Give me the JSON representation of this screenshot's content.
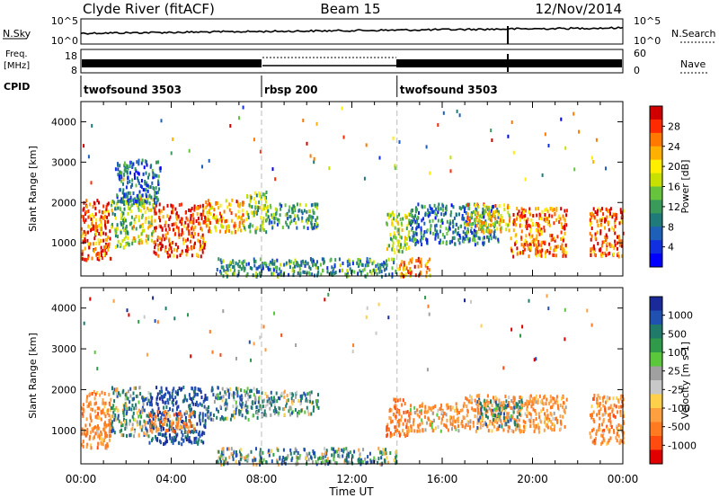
{
  "header": {
    "station": "Clyde River (fitACF)",
    "beam": "Beam 15",
    "date": "12/Nov/2014"
  },
  "panels": {
    "noise": {
      "left_label": "N.Sky",
      "left_ticks": [
        "10^5",
        "10^0"
      ],
      "right_ticks": [
        "10^5",
        "10^0"
      ],
      "right_label": "N.Search"
    },
    "freq": {
      "left_label_1": "Freq.",
      "left_label_2": "[MHz]",
      "left_ticks": [
        "18",
        "8"
      ],
      "right_ticks": [
        "60",
        "0"
      ],
      "right_label": "Nave"
    },
    "cpid": {
      "label": "CPID",
      "segments": [
        {
          "name": "twofsound 3503",
          "start_hour": 0,
          "end_hour": 8
        },
        {
          "name": "rbsp 200",
          "start_hour": 8,
          "end_hour": 14
        },
        {
          "name": "twofsound 3503",
          "start_hour": 14,
          "end_hour": 24
        }
      ]
    }
  },
  "colorbars": {
    "power": {
      "label": "Power [dB]",
      "ticks": [
        "28",
        "24",
        "20",
        "16",
        "12",
        "8",
        "4"
      ],
      "colors": [
        "#d00000",
        "#ff2a00",
        "#ff7800",
        "#ffb000",
        "#ffee00",
        "#c8e000",
        "#66c33c",
        "#3a9a5a",
        "#1f7a7a",
        "#1e5fb8",
        "#1030e0",
        "#0000ff"
      ]
    },
    "velocity": {
      "label": "Velocity [m s-1]",
      "ticks": [
        "1000",
        "500",
        "100",
        "25",
        "-25",
        "-100",
        "-500",
        "-1000"
      ],
      "colors": [
        "#1a2a9a",
        "#2050b0",
        "#1f7a6a",
        "#2e9a4a",
        "#5ac83a",
        "#a0a0a0",
        "#c8c8c8",
        "#ffd04a",
        "#ffa040",
        "#ff7a20",
        "#ff4a10",
        "#e00000"
      ]
    }
  },
  "chart_data": [
    {
      "type": "heatmap",
      "title": "Power",
      "ylabel": "Slant Range [km]",
      "xlabel": "Time UT",
      "x_range_hours": [
        0,
        24
      ],
      "ylim": [
        180,
        4500
      ],
      "yticks": [
        1000,
        2000,
        3000,
        4000
      ],
      "xtick_labels": [
        "00:00",
        "04:00",
        "08:00",
        "12:00",
        "16:00",
        "20:00",
        "00:00"
      ],
      "colorscale_range_db": [
        0,
        30
      ],
      "regions": [
        {
          "t0": 0.0,
          "t1": 1.3,
          "r0": 600,
          "r1": 2100,
          "power_db": 26
        },
        {
          "t0": 1.3,
          "t1": 2.3,
          "r0": 900,
          "r1": 2100,
          "power_db": 14
        },
        {
          "t0": 2.3,
          "t1": 3.2,
          "r0": 1000,
          "r1": 2200,
          "power_db": 18
        },
        {
          "t0": 3.2,
          "t1": 5.5,
          "r0": 700,
          "r1": 2000,
          "power_db": 27
        },
        {
          "t0": 5.5,
          "t1": 7.2,
          "r0": 1300,
          "r1": 2100,
          "power_db": 22
        },
        {
          "t0": 7.2,
          "t1": 8.2,
          "r0": 1300,
          "r1": 2300,
          "power_db": 14
        },
        {
          "t0": 8.2,
          "t1": 10.5,
          "r0": 1400,
          "r1": 2000,
          "power_db": 10
        },
        {
          "t0": 1.5,
          "t1": 3.5,
          "r0": 2000,
          "r1": 3100,
          "power_db": 7
        },
        {
          "t0": 13.5,
          "t1": 14.5,
          "r0": 800,
          "r1": 1800,
          "power_db": 16
        },
        {
          "t0": 14.0,
          "t1": 15.5,
          "r0": 200,
          "r1": 650,
          "power_db": 24
        },
        {
          "t0": 14.5,
          "t1": 18.5,
          "r0": 1000,
          "r1": 2000,
          "power_db": 8
        },
        {
          "t0": 17.0,
          "t1": 19.0,
          "r0": 1300,
          "r1": 2000,
          "power_db": 20
        },
        {
          "t0": 19.0,
          "t1": 21.5,
          "r0": 700,
          "r1": 1900,
          "power_db": 25
        },
        {
          "t0": 22.5,
          "t1": 24.0,
          "r0": 700,
          "r1": 1900,
          "power_db": 26
        },
        {
          "t0": 6.0,
          "t1": 14.0,
          "r0": 200,
          "r1": 650,
          "power_db": 10
        }
      ]
    },
    {
      "type": "heatmap",
      "title": "Velocity",
      "ylabel": "Slant Range [km]",
      "xlabel": "Time UT",
      "x_range_hours": [
        0,
        24
      ],
      "ylim": [
        180,
        4500
      ],
      "yticks": [
        1000,
        2000,
        3000,
        4000
      ],
      "xtick_labels": [
        "00:00",
        "04:00",
        "08:00",
        "12:00",
        "16:00",
        "20:00",
        "00:00"
      ],
      "colorscale_range_ms": [
        -1000,
        1000
      ],
      "regions": [
        {
          "t0": 0.0,
          "t1": 1.3,
          "r0": 600,
          "r1": 2000,
          "velocity": -300
        },
        {
          "t0": 1.3,
          "t1": 3.0,
          "r0": 900,
          "r1": 2100,
          "velocity": 80
        },
        {
          "t0": 3.0,
          "t1": 5.5,
          "r0": 700,
          "r1": 2100,
          "velocity": 400
        },
        {
          "t0": 3.0,
          "t1": 5.0,
          "r0": 1000,
          "r1": 1500,
          "velocity": -300
        },
        {
          "t0": 5.5,
          "t1": 8.2,
          "r0": 1300,
          "r1": 2100,
          "velocity": 150
        },
        {
          "t0": 8.2,
          "t1": 10.5,
          "r0": 1400,
          "r1": 2000,
          "velocity": 120
        },
        {
          "t0": 13.5,
          "t1": 14.5,
          "r0": 900,
          "r1": 1800,
          "velocity": -400
        },
        {
          "t0": 14.5,
          "t1": 17.0,
          "r0": 1000,
          "r1": 1700,
          "velocity": -200
        },
        {
          "t0": 17.0,
          "t1": 21.5,
          "r0": 1000,
          "r1": 1900,
          "velocity": -250
        },
        {
          "t0": 17.5,
          "t1": 19.5,
          "r0": 1100,
          "r1": 1800,
          "velocity": 100
        },
        {
          "t0": 22.5,
          "t1": 24.0,
          "r0": 700,
          "r1": 1900,
          "velocity": -300
        },
        {
          "t0": 6.0,
          "t1": 14.0,
          "r0": 200,
          "r1": 600,
          "velocity": 100
        }
      ]
    }
  ]
}
